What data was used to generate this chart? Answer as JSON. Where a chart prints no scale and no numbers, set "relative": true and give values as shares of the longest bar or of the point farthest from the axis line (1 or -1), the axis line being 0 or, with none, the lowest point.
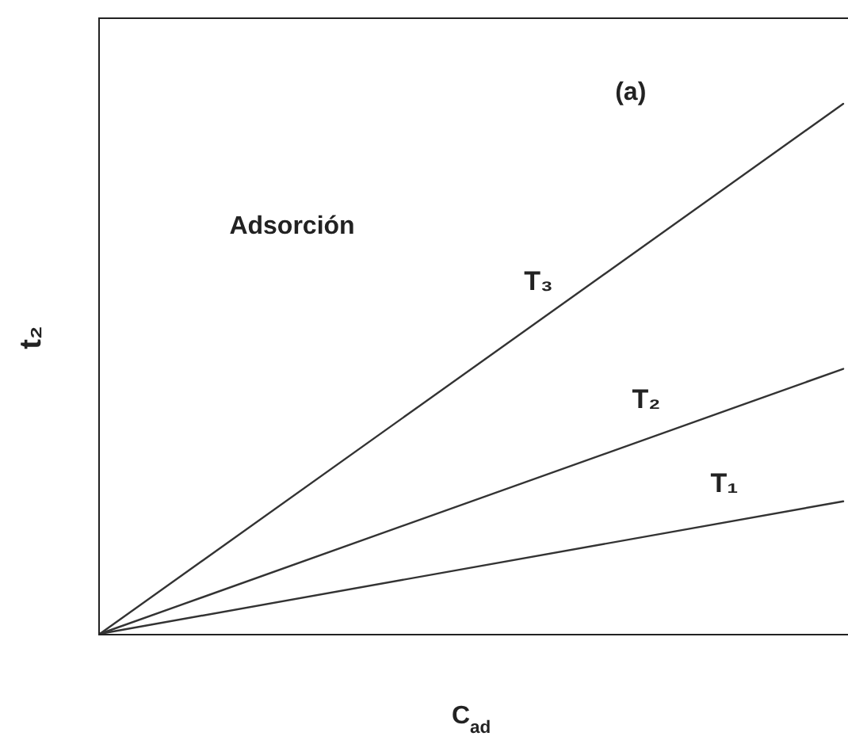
{
  "chart_data": {
    "type": "line",
    "relative": true,
    "categories": [
      null,
      null
    ],
    "series": [
      {
        "name": "T₁",
        "color": "#333333",
        "values": [
          0,
          0.25
        ]
      },
      {
        "name": "T₂",
        "color": "#333333",
        "values": [
          0,
          0.5
        ]
      },
      {
        "name": "T₃",
        "color": "#333333",
        "values": [
          0,
          1
        ]
      }
    ],
    "xlabel": "C$_{ad}$",
    "ylabel": "t₂",
    "annotations": [
      "(a)",
      "Adsorción"
    ],
    "marker": "none",
    "legend": false,
    "grid": false
  }
}
